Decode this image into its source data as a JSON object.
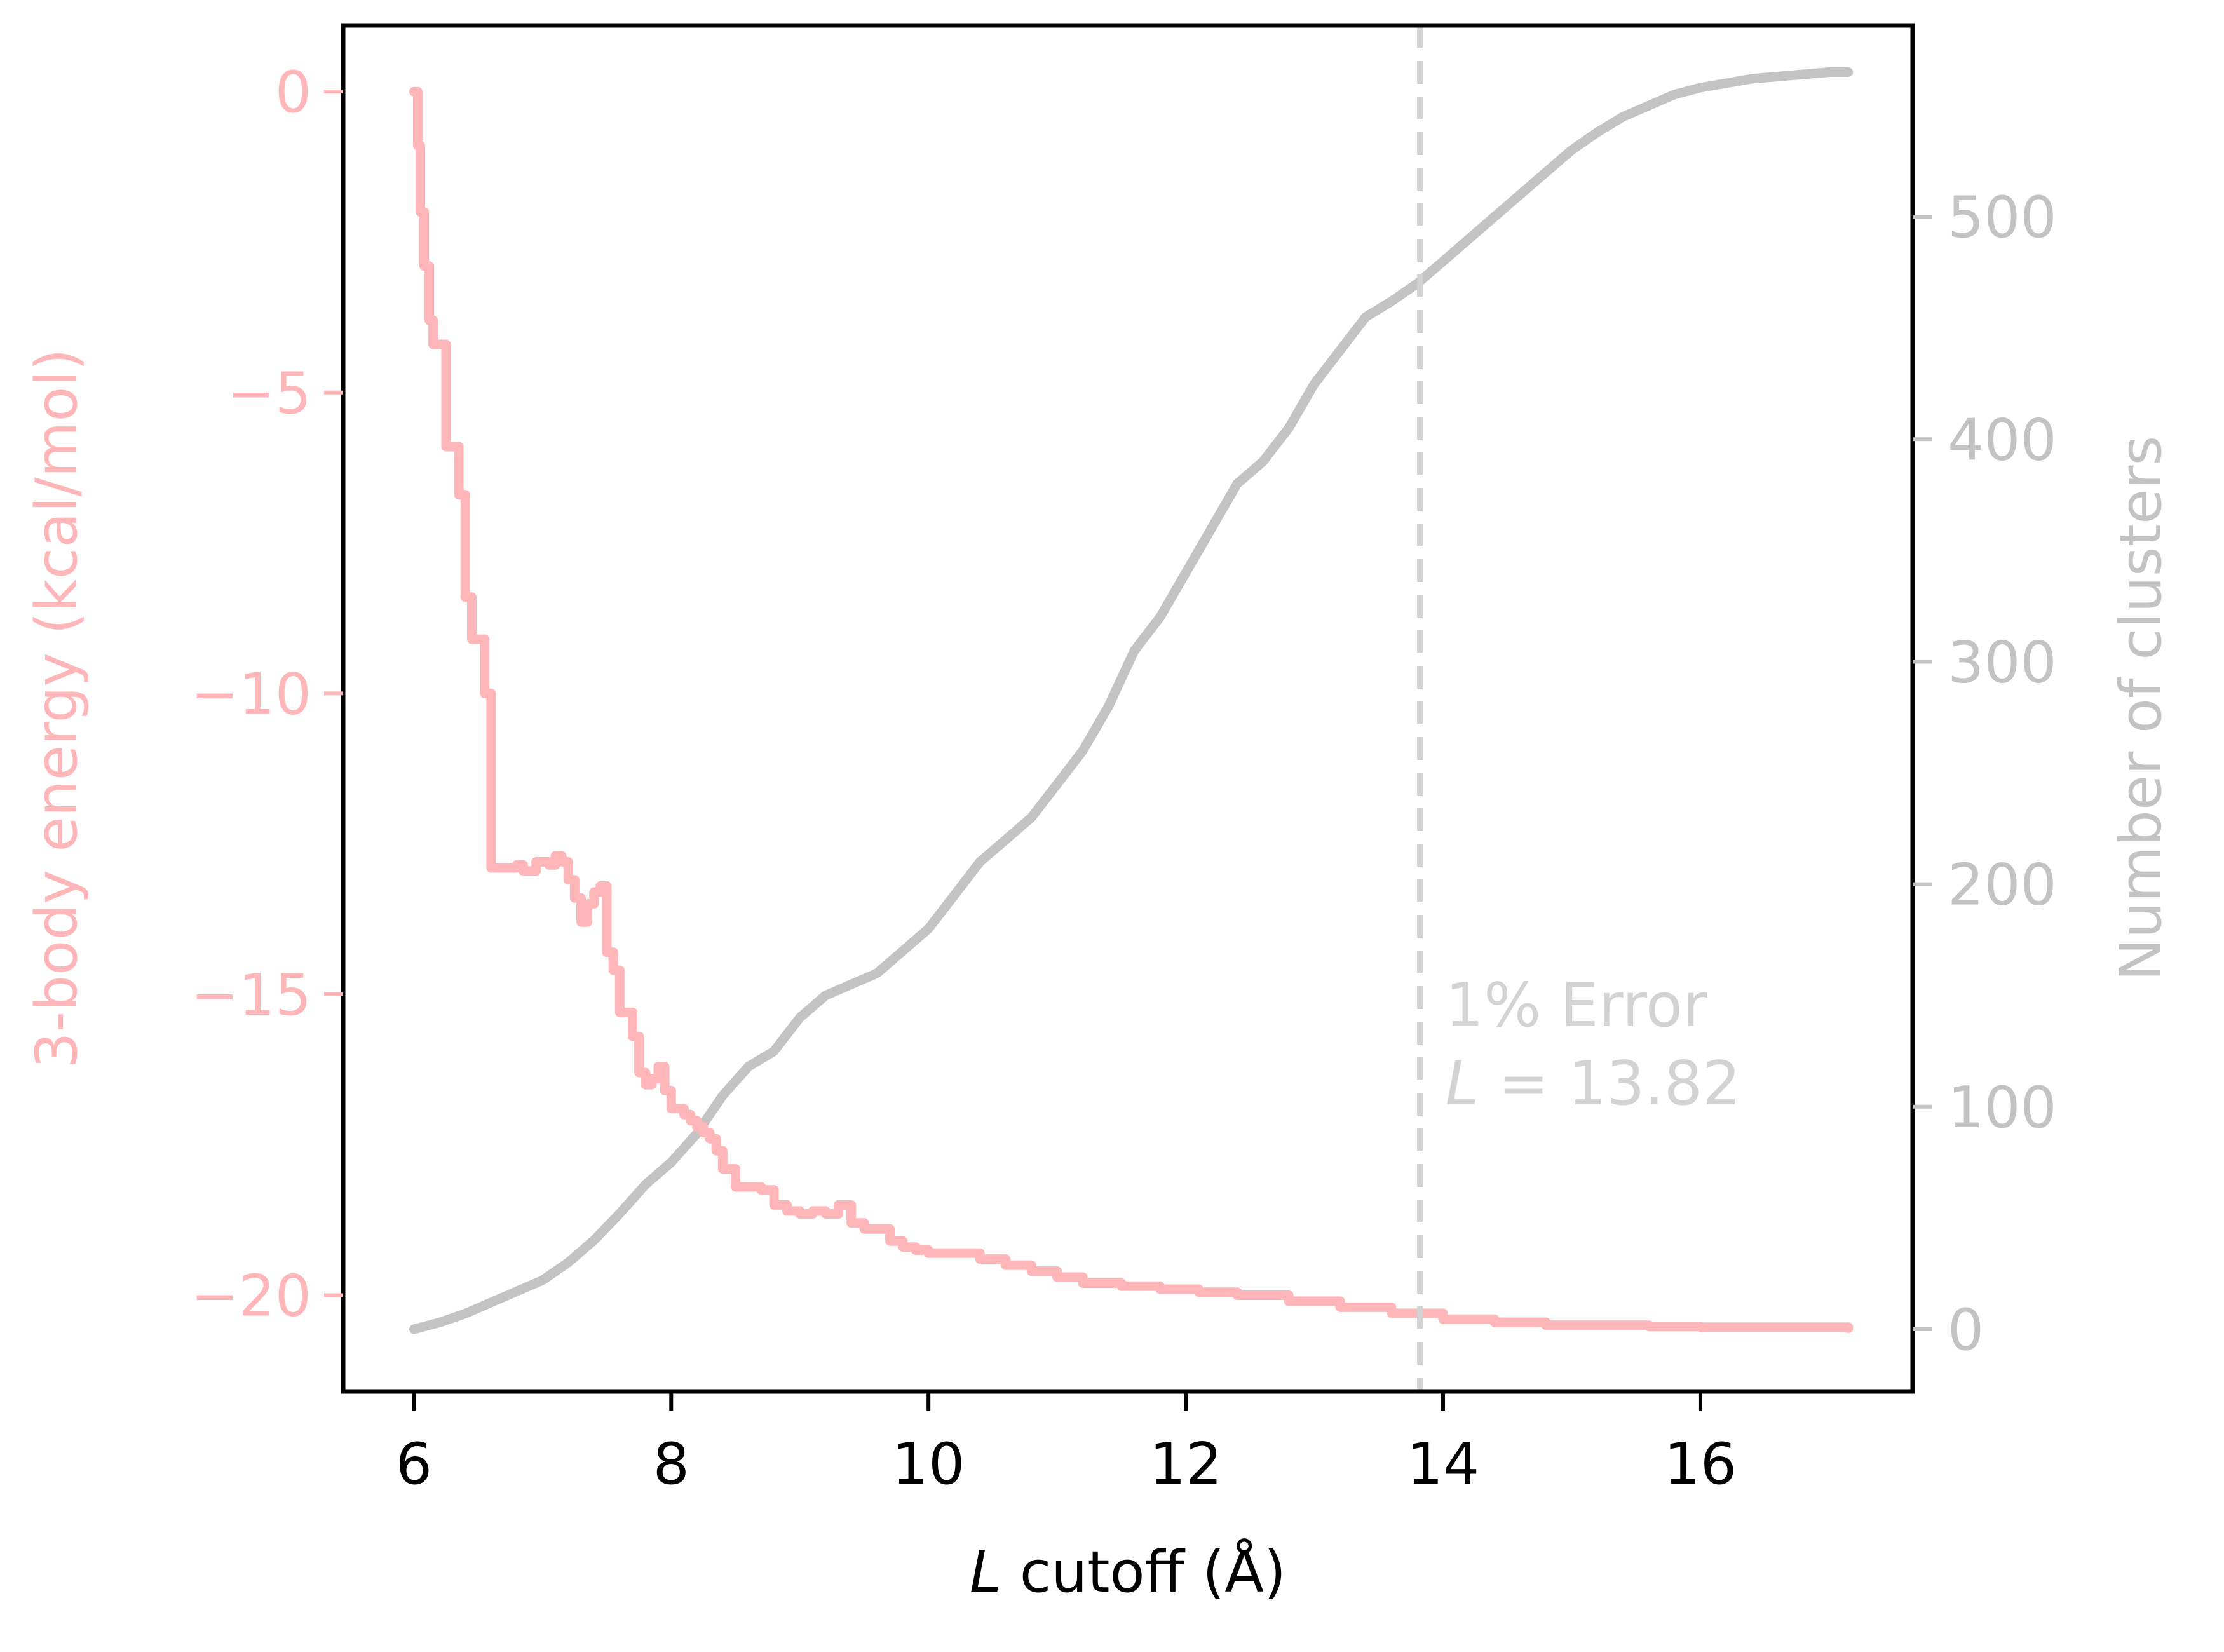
{
  "chart_data": {
    "type": "line",
    "title": "",
    "xlabel": {
      "italic": "L",
      "rest": " cutoff (Å)"
    },
    "ylabel_left": "3-body energy (kcal/mol)",
    "ylabel_right": "Number of clusters",
    "xlim": [
      5.45,
      17.65
    ],
    "ylim_left": [
      -21.6,
      1.1
    ],
    "ylim_right": [
      -28,
      586
    ],
    "xticks": [
      {
        "value": 6,
        "label": "6"
      },
      {
        "value": 8,
        "label": "8"
      },
      {
        "value": 10,
        "label": "10"
      },
      {
        "value": 12,
        "label": "12"
      },
      {
        "value": 14,
        "label": "14"
      },
      {
        "value": 16,
        "label": "16"
      }
    ],
    "yticks_left": [
      {
        "value": 0,
        "label": "0"
      },
      {
        "value": -5,
        "label": "−5"
      },
      {
        "value": -10,
        "label": "−10"
      },
      {
        "value": -15,
        "label": "−15"
      },
      {
        "value": -20,
        "label": "−20"
      }
    ],
    "yticks_right": [
      {
        "value": 0,
        "label": "0"
      },
      {
        "value": 100,
        "label": "100"
      },
      {
        "value": 200,
        "label": "200"
      },
      {
        "value": 300,
        "label": "300"
      },
      {
        "value": 400,
        "label": "400"
      },
      {
        "value": 500,
        "label": "500"
      }
    ],
    "grid": false,
    "colors": {
      "energy": "#ffb6b9",
      "clusters": "#c3c3c3",
      "cutoff_line": "#d3d3d3",
      "annotation": "#d3d3d3",
      "frame": "#000000"
    },
    "series": [
      {
        "axis": "left",
        "step": true,
        "x": [
          6.0,
          6.03,
          6.05,
          6.08,
          6.12,
          6.15,
          6.2,
          6.25,
          6.3,
          6.35,
          6.4,
          6.45,
          6.5,
          6.55,
          6.6,
          6.65,
          6.7,
          6.75,
          6.8,
          6.85,
          6.95,
          7.05,
          7.1,
          7.15,
          7.2,
          7.25,
          7.3,
          7.35,
          7.4,
          7.45,
          7.5,
          7.55,
          7.6,
          7.65,
          7.7,
          7.75,
          7.8,
          7.85,
          7.9,
          7.95,
          8.0,
          8.05,
          8.1,
          8.15,
          8.2,
          8.25,
          8.3,
          8.35,
          8.4,
          8.5,
          8.6,
          8.7,
          8.8,
          8.9,
          8.95,
          9.0,
          9.1,
          9.2,
          9.3,
          9.4,
          9.5,
          9.7,
          9.8,
          9.9,
          10.0,
          10.2,
          10.4,
          10.6,
          10.8,
          11.0,
          11.2,
          11.5,
          11.8,
          12.1,
          12.4,
          12.8,
          13.2,
          13.6,
          14.0,
          14.4,
          14.8,
          15.2,
          15.6,
          16.0,
          16.5,
          17.15
        ],
        "y": [
          0.0,
          -0.9,
          -2.0,
          -2.9,
          -3.8,
          -4.2,
          -4.2,
          -5.9,
          -5.9,
          -6.7,
          -8.4,
          -9.1,
          -9.1,
          -10.0,
          -12.9,
          -12.9,
          -12.9,
          -12.9,
          -12.85,
          -12.95,
          -12.8,
          -12.85,
          -12.7,
          -12.8,
          -13.1,
          -13.4,
          -13.8,
          -13.5,
          -13.3,
          -13.2,
          -14.3,
          -14.6,
          -15.3,
          -15.3,
          -15.7,
          -16.3,
          -16.5,
          -16.4,
          -16.2,
          -16.6,
          -16.9,
          -16.9,
          -17.0,
          -17.1,
          -17.2,
          -17.3,
          -17.4,
          -17.6,
          -17.9,
          -18.2,
          -18.2,
          -18.25,
          -18.5,
          -18.6,
          -18.6,
          -18.65,
          -18.6,
          -18.65,
          -18.5,
          -18.8,
          -18.9,
          -19.1,
          -19.2,
          -19.25,
          -19.3,
          -19.3,
          -19.4,
          -19.5,
          -19.6,
          -19.7,
          -19.8,
          -19.85,
          -19.9,
          -19.95,
          -20.0,
          -20.1,
          -20.2,
          -20.3,
          -20.4,
          -20.45,
          -20.5,
          -20.5,
          -20.52,
          -20.53,
          -20.53,
          -20.55
        ]
      },
      {
        "axis": "right",
        "step": false,
        "x": [
          6.0,
          6.2,
          6.4,
          6.6,
          6.8,
          7.0,
          7.2,
          7.4,
          7.6,
          7.8,
          8.0,
          8.2,
          8.4,
          8.6,
          8.8,
          9.0,
          9.2,
          9.4,
          9.6,
          9.8,
          10.0,
          10.2,
          10.4,
          10.6,
          10.8,
          11.0,
          11.2,
          11.4,
          11.6,
          11.8,
          12.0,
          12.2,
          12.4,
          12.6,
          12.8,
          13.0,
          13.2,
          13.4,
          13.6,
          13.8,
          14.0,
          14.2,
          14.4,
          14.6,
          14.8,
          15.0,
          15.2,
          15.4,
          15.6,
          15.8,
          16.0,
          16.2,
          16.4,
          16.6,
          16.8,
          17.0,
          17.15
        ],
        "y": [
          0,
          3,
          7,
          12,
          17,
          22,
          30,
          40,
          52,
          65,
          75,
          88,
          105,
          118,
          125,
          140,
          150,
          155,
          160,
          170,
          180,
          195,
          210,
          220,
          230,
          245,
          260,
          280,
          305,
          320,
          340,
          360,
          380,
          390,
          405,
          425,
          440,
          455,
          462,
          470,
          480,
          490,
          500,
          510,
          520,
          530,
          538,
          545,
          550,
          555,
          558,
          560,
          562,
          563,
          564,
          565,
          565
        ]
      }
    ],
    "cutoff_line": {
      "x": 13.82
    },
    "annotation": {
      "line1": "1% Error",
      "line2_italic": "L",
      "line2_rest": " = 13.82"
    }
  }
}
